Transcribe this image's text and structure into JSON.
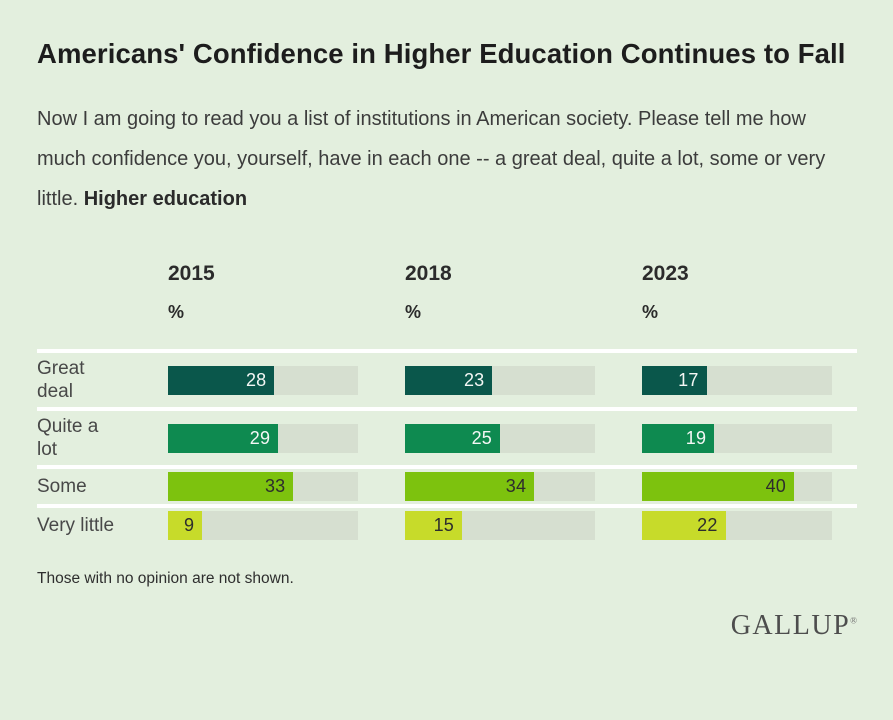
{
  "page": {
    "title": "Americans' Confidence in Higher Education Continues to Fall",
    "question": {
      "text": "Now I am going to read you a list of institutions in American society. Please tell me how much confidence you, yourself, have in each one -- a great deal, quite a lot, some or very little. ",
      "emphasis": "Higher education"
    },
    "footnote": "Those with no opinion are not shown.",
    "brand": "GALLUP",
    "registered_mark": "®"
  },
  "chart_data": {
    "type": "bar",
    "orientation": "horizontal",
    "title": "Americans' Confidence in Higher Education Continues to Fall",
    "unit": "%",
    "group_headers": [
      "2015",
      "2018",
      "2023"
    ],
    "categories": [
      "Great deal",
      "Quite a lot",
      "Some",
      "Very little"
    ],
    "row_display_labels": [
      "Great\ndeal",
      "Quite a\nlot",
      "Some",
      "Very little"
    ],
    "series": [
      {
        "name": "2015",
        "values": [
          28,
          29,
          33,
          9
        ]
      },
      {
        "name": "2018",
        "values": [
          23,
          25,
          34,
          15
        ]
      },
      {
        "name": "2023",
        "values": [
          17,
          19,
          40,
          22
        ]
      }
    ],
    "xlim": [
      0,
      50
    ],
    "grid": false,
    "legend": "none",
    "value_labels": "inside-end",
    "bar_colors": {
      "great_deal": "#0a574b",
      "quite_a_lot": "#0e8a50",
      "some": "#7dc20e",
      "very_little": "#c7db2a"
    },
    "track_color": "#d6dfd0",
    "background_color": "#e3efde"
  }
}
